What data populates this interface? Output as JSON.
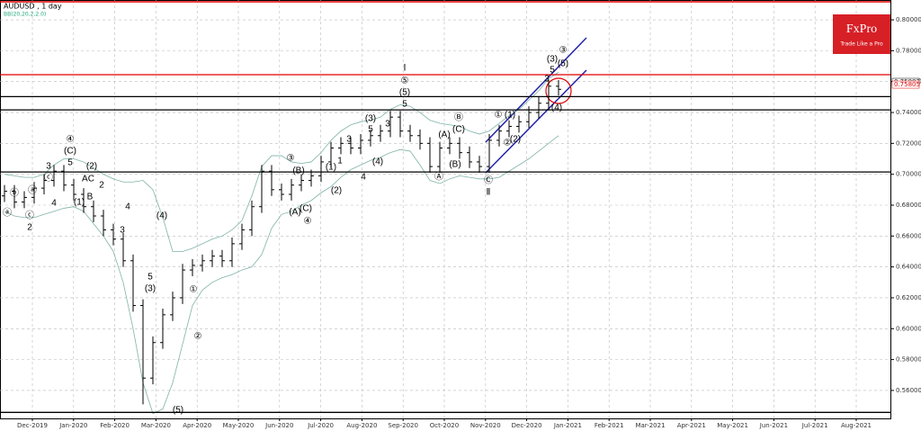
{
  "chart_data": {
    "type": "ohlc",
    "title": "AUDUSD , 1 day",
    "subtitle": "BB(20,20,2,2.0)",
    "logo": {
      "brand": "FxPro",
      "tagline": "Trade Like a Pro"
    },
    "categories": [
      "Dec-2019",
      "Jan-2020",
      "Feb-2020",
      "Mar-2020",
      "Apr-2020",
      "May-2020",
      "Jun-2020",
      "Jul-2020",
      "Aug-2020",
      "Sep-2020",
      "Oct-2020",
      "Nov-2020",
      "Dec-2020",
      "Jan-2021",
      "Feb-2021",
      "Mar-2021",
      "Apr-2021",
      "May-2021",
      "Jun-2021",
      "Jul-2021",
      "Aug-2021"
    ],
    "ylim": [
      0.5419,
      0.8111
    ],
    "yticks": [
      {
        "value": 0.56,
        "label": "0.56000"
      },
      {
        "value": 0.58,
        "label": "0.58000"
      },
      {
        "value": 0.6,
        "label": "0.60000"
      },
      {
        "value": 0.62,
        "label": "0.62000"
      },
      {
        "value": 0.64,
        "label": "0.64000"
      },
      {
        "value": 0.66,
        "label": "0.66000"
      },
      {
        "value": 0.68,
        "label": "0.68000"
      },
      {
        "value": 0.7,
        "label": "0.70000"
      },
      {
        "value": 0.72,
        "label": "0.72000"
      },
      {
        "value": 0.74,
        "label": "0.74000"
      },
      {
        "value": 0.76,
        "label": "0.76000"
      },
      {
        "value": 0.78,
        "label": "0.78000"
      },
      {
        "value": 0.8,
        "label": "0.80000"
      }
    ],
    "grid": true,
    "color": "#000000",
    "open": [
      0.686,
      0.689,
      0.682,
      0.685,
      0.691,
      0.696,
      0.702,
      0.693,
      0.687,
      0.679,
      0.673,
      0.664,
      0.658,
      0.644,
      0.615,
      0.568,
      0.591,
      0.609,
      0.62,
      0.638,
      0.641,
      0.644,
      0.647,
      0.644,
      0.655,
      0.664,
      0.679,
      0.702,
      0.69,
      0.687,
      0.693,
      0.696,
      0.699,
      0.708,
      0.717,
      0.72,
      0.717,
      0.722,
      0.725,
      0.728,
      0.737,
      0.728,
      0.725,
      0.72,
      0.705,
      0.717,
      0.72,
      0.714,
      0.708,
      0.705,
      0.722,
      0.728,
      0.731,
      0.734,
      0.74,
      0.746,
      0.757
    ],
    "high": [
      0.693,
      0.693,
      0.689,
      0.695,
      0.7,
      0.706,
      0.706,
      0.697,
      0.691,
      0.683,
      0.677,
      0.668,
      0.662,
      0.648,
      0.619,
      0.595,
      0.613,
      0.624,
      0.642,
      0.645,
      0.648,
      0.651,
      0.651,
      0.659,
      0.668,
      0.683,
      0.706,
      0.706,
      0.694,
      0.697,
      0.7,
      0.703,
      0.712,
      0.721,
      0.724,
      0.724,
      0.726,
      0.729,
      0.732,
      0.741,
      0.741,
      0.732,
      0.729,
      0.724,
      0.721,
      0.724,
      0.724,
      0.718,
      0.712,
      0.726,
      0.732,
      0.735,
      0.738,
      0.744,
      0.75,
      0.761,
      0.761
    ],
    "low": [
      0.682,
      0.678,
      0.678,
      0.681,
      0.687,
      0.692,
      0.689,
      0.683,
      0.675,
      0.669,
      0.66,
      0.654,
      0.64,
      0.611,
      0.551,
      0.564,
      0.587,
      0.605,
      0.616,
      0.634,
      0.637,
      0.64,
      0.64,
      0.64,
      0.651,
      0.66,
      0.675,
      0.686,
      0.683,
      0.683,
      0.689,
      0.692,
      0.695,
      0.704,
      0.713,
      0.713,
      0.713,
      0.718,
      0.721,
      0.724,
      0.724,
      0.721,
      0.716,
      0.701,
      0.701,
      0.713,
      0.71,
      0.704,
      0.701,
      0.701,
      0.718,
      0.724,
      0.727,
      0.73,
      0.736,
      0.742,
      0.751
    ],
    "close": [
      0.689,
      0.682,
      0.685,
      0.691,
      0.696,
      0.702,
      0.693,
      0.687,
      0.679,
      0.673,
      0.664,
      0.658,
      0.644,
      0.615,
      0.568,
      0.591,
      0.609,
      0.62,
      0.638,
      0.641,
      0.644,
      0.647,
      0.644,
      0.655,
      0.664,
      0.679,
      0.702,
      0.69,
      0.687,
      0.693,
      0.696,
      0.699,
      0.708,
      0.717,
      0.72,
      0.717,
      0.722,
      0.725,
      0.728,
      0.737,
      0.728,
      0.725,
      0.72,
      0.705,
      0.717,
      0.72,
      0.714,
      0.708,
      0.705,
      0.722,
      0.728,
      0.731,
      0.734,
      0.74,
      0.746,
      0.757,
      0.755
    ],
    "bands": [
      {
        "color": "#7fb3a8",
        "values": [
          0.7,
          0.699,
          0.698,
          0.698,
          0.7,
          0.706,
          0.71,
          0.71,
          0.708,
          0.704,
          0.7,
          0.697,
          0.695,
          0.695,
          0.696,
          0.69,
          0.672,
          0.65,
          0.65,
          0.652,
          0.655,
          0.658,
          0.66,
          0.664,
          0.67,
          0.686,
          0.705,
          0.712,
          0.712,
          0.708,
          0.707,
          0.708,
          0.714,
          0.722,
          0.728,
          0.732,
          0.734,
          0.735,
          0.737,
          0.742,
          0.745,
          0.744,
          0.74,
          0.735,
          0.733,
          0.732,
          0.731,
          0.728,
          0.726,
          0.728,
          0.733,
          0.738,
          0.742,
          0.748,
          0.754,
          0.762,
          0.766
        ]
      },
      {
        "color": "#7fb3a8",
        "values": [
          0.676,
          0.673,
          0.672,
          0.672,
          0.674,
          0.676,
          0.678,
          0.679,
          0.676,
          0.668,
          0.66,
          0.65,
          0.63,
          0.6,
          0.565,
          0.545,
          0.548,
          0.565,
          0.59,
          0.615,
          0.625,
          0.63,
          0.633,
          0.635,
          0.638,
          0.64,
          0.648,
          0.665,
          0.674,
          0.676,
          0.68,
          0.683,
          0.688,
          0.692,
          0.698,
          0.703,
          0.706,
          0.709,
          0.711,
          0.714,
          0.716,
          0.715,
          0.706,
          0.696,
          0.694,
          0.697,
          0.699,
          0.698,
          0.697,
          0.697,
          0.698,
          0.702,
          0.706,
          0.71,
          0.715,
          0.72,
          0.725
        ]
      }
    ],
    "levels": [
      {
        "value": 0.7645,
        "color": "#e00000"
      },
      {
        "value": 0.7503,
        "color": "#000000"
      },
      {
        "value": 0.7417,
        "color": "#000000"
      },
      {
        "value": 0.7015,
        "color": "#000000"
      },
      {
        "value": 0.5458,
        "color": "#000000"
      }
    ],
    "price_labels": [
      {
        "value": 0.75982,
        "label": "0.75982"
      },
      {
        "value": 0.75805,
        "label": "0.75805"
      }
    ]
  },
  "annotations": [
    "ⓐ",
    "ⓑ",
    "ⓒ",
    "2",
    "ⓐ",
    "ⓒ",
    "3",
    "4",
    "④",
    "(C)",
    "5",
    "(2)",
    "AC",
    "(1)",
    "B",
    "2",
    "3",
    "4",
    "(4)",
    "5",
    "(3)",
    "①",
    "②",
    "(5)",
    "③",
    "(B)",
    "(A)",
    "(C)",
    "④",
    "(1)",
    "(2)",
    "1",
    "4",
    "3",
    "5",
    "(3)",
    "(4)",
    "3",
    "Ⅰ",
    "⑤",
    "(5)",
    "5",
    "Ⓐ",
    "(A)",
    "Ⓑ",
    "(C)",
    "(B)",
    "Ⓒ",
    "Ⅱ",
    "①",
    "(1)",
    "②",
    "(2)",
    "(3)",
    "③",
    "(5)",
    "5",
    "3",
    "(4)"
  ]
}
